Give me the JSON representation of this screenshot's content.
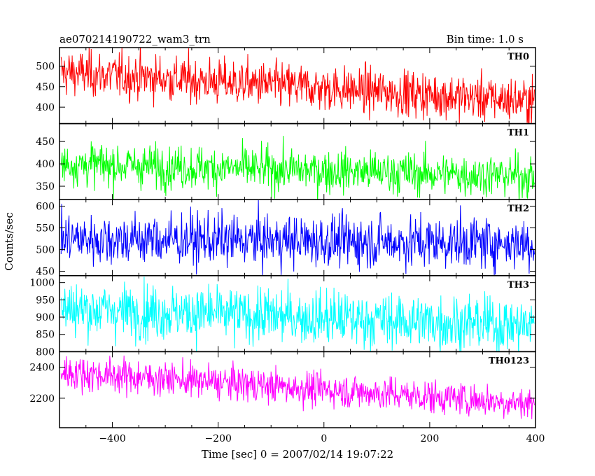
{
  "chart_data": {
    "type": "line",
    "title_left": "ae070214190722_wam3_trn",
    "title_right": "Bin time: 1.0 s",
    "xlabel": "Time [sec] 0 = 2007/02/14 19:07:22",
    "ylabel": "Counts/sec",
    "xlim": [
      -500,
      400
    ],
    "x_ticks": [
      -400,
      -200,
      0,
      200,
      400
    ],
    "x_tick_labels": [
      "−400",
      "−200",
      "0",
      "200",
      "400"
    ],
    "bin_time_s": 1.0,
    "panels": [
      {
        "name": "TH0",
        "color": "#ff0000",
        "ylim": [
          360,
          545
        ],
        "yticks": [
          400,
          450,
          500
        ],
        "ytick_labels": [
          "400",
          "450",
          "500"
        ],
        "start_level": 485,
        "end_level": 415,
        "noise": 28
      },
      {
        "name": "TH1",
        "color": "#00ff00",
        "ylim": [
          320,
          490
        ],
        "yticks": [
          350,
          400,
          450
        ],
        "ytick_labels": [
          "350",
          "400",
          "450"
        ],
        "start_level": 400,
        "end_level": 372,
        "noise": 24
      },
      {
        "name": "TH2",
        "color": "#0000ff",
        "ylim": [
          440,
          615
        ],
        "yticks": [
          450,
          500,
          550,
          600
        ],
        "ytick_labels": [
          "450",
          "500",
          "550",
          "600"
        ],
        "start_level": 525,
        "end_level": 515,
        "noise": 30
      },
      {
        "name": "TH3",
        "color": "#00ffff",
        "ylim": [
          800,
          1020
        ],
        "yticks": [
          800,
          850,
          900,
          950,
          1000
        ],
        "ytick_labels": [
          "800",
          "850",
          "900",
          "950",
          "1000"
        ],
        "start_level": 925,
        "end_level": 875,
        "noise": 40
      },
      {
        "name": "TH0123",
        "color": "#ff00ff",
        "ylim": [
          2010,
          2500
        ],
        "yticks": [
          2200,
          2400
        ],
        "ytick_labels": [
          "2200",
          "2400"
        ],
        "start_level": 2370,
        "end_level": 2165,
        "noise": 55
      }
    ]
  }
}
